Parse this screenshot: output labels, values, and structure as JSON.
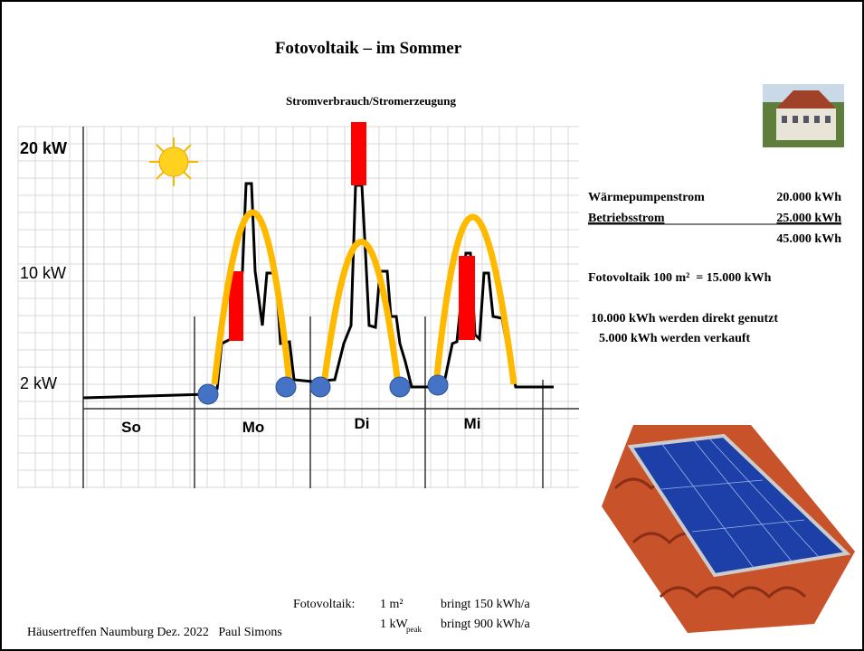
{
  "title": "Fotovoltaik – im Sommer",
  "diagram": {
    "title": "Stromverbrauch/Stromerzeugung",
    "y_labels": [
      "20 kW",
      "10 kW",
      "2 kW"
    ],
    "days": [
      "So",
      "Mo",
      "Di",
      "Mi"
    ]
  },
  "consumption": {
    "rows": [
      [
        "Wärmepumpenstrom",
        "20.000 kWh"
      ],
      [
        "Betriebsstrom",
        "25.000 kWh"
      ]
    ],
    "total": "45.000 kWh"
  },
  "pv": "Fotovoltaik 100 m²  = 15.000 kWh",
  "usage": [
    "10.000 kWh werden direkt genutzt",
    "5.000 kWh werden verkauft"
  ],
  "yield": {
    "label": "Fotovoltaik:",
    "rows": [
      [
        "1 m²",
        "bringt  150 kWh/a"
      ],
      [
        "1 kW",
        "peak",
        "bringt  900 kWh/a"
      ]
    ]
  },
  "footer": "Häusertreffen Naumburg Dez. 2022   Paul Simons"
}
